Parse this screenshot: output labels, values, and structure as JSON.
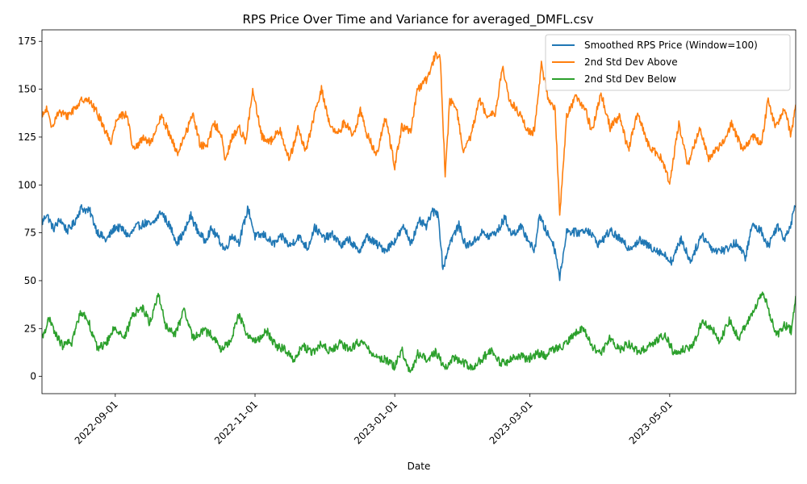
{
  "chart_data": {
    "type": "line",
    "title": "RPS Price Over Time and Variance for averaged_DMFL.csv",
    "xlabel": "Date",
    "ylabel": "",
    "x_range": [
      "2022-07-31",
      "2023-06-25"
    ],
    "ylim": [
      -9,
      181
    ],
    "x_ticks": [
      "2022-09-01",
      "2022-11-01",
      "2023-01-01",
      "2023-03-01",
      "2023-05-01"
    ],
    "y_ticks": [
      "0",
      "25",
      "50",
      "75",
      "100",
      "125",
      "150",
      "175"
    ],
    "grid": false,
    "legend_position": "top-right",
    "noise_amplitude": 2.2,
    "series": [
      {
        "name": "Smoothed RPS Price (Window=100)",
        "color": "#1f77b4",
        "points": [
          [
            "2022-07-31",
            80
          ],
          [
            "2022-08-02",
            85
          ],
          [
            "2022-08-05",
            77
          ],
          [
            "2022-08-08",
            82
          ],
          [
            "2022-08-11",
            76
          ],
          [
            "2022-08-14",
            80
          ],
          [
            "2022-08-17",
            88
          ],
          [
            "2022-08-21",
            86
          ],
          [
            "2022-08-24",
            76
          ],
          [
            "2022-08-28",
            71
          ],
          [
            "2022-09-01",
            78
          ],
          [
            "2022-09-04",
            77
          ],
          [
            "2022-09-07",
            73
          ],
          [
            "2022-09-10",
            78
          ],
          [
            "2022-09-14",
            80
          ],
          [
            "2022-09-17",
            79
          ],
          [
            "2022-09-21",
            86
          ],
          [
            "2022-09-25",
            78
          ],
          [
            "2022-09-28",
            70
          ],
          [
            "2022-10-01",
            75
          ],
          [
            "2022-10-04",
            84
          ],
          [
            "2022-10-07",
            76
          ],
          [
            "2022-10-10",
            71
          ],
          [
            "2022-10-13",
            77
          ],
          [
            "2022-10-16",
            72
          ],
          [
            "2022-10-19",
            66
          ],
          [
            "2022-10-22",
            74
          ],
          [
            "2022-10-25",
            70
          ],
          [
            "2022-10-29",
            88
          ],
          [
            "2022-11-01",
            73
          ],
          [
            "2022-11-05",
            74
          ],
          [
            "2022-11-09",
            69
          ],
          [
            "2022-11-13",
            73
          ],
          [
            "2022-11-16",
            68
          ],
          [
            "2022-11-20",
            73
          ],
          [
            "2022-11-24",
            67
          ],
          [
            "2022-11-27",
            78
          ],
          [
            "2022-12-01",
            72
          ],
          [
            "2022-12-05",
            74
          ],
          [
            "2022-12-09",
            68
          ],
          [
            "2022-12-12",
            72
          ],
          [
            "2022-12-16",
            65
          ],
          [
            "2022-12-20",
            73
          ],
          [
            "2022-12-24",
            69
          ],
          [
            "2022-12-28",
            66
          ],
          [
            "2023-01-01",
            71
          ],
          [
            "2023-01-05",
            78
          ],
          [
            "2023-01-08",
            70
          ],
          [
            "2023-01-12",
            81
          ],
          [
            "2023-01-15",
            78
          ],
          [
            "2023-01-17",
            86
          ],
          [
            "2023-01-20",
            85
          ],
          [
            "2023-01-22",
            56
          ],
          [
            "2023-01-25",
            70
          ],
          [
            "2023-01-29",
            79
          ],
          [
            "2023-02-01",
            68
          ],
          [
            "2023-02-05",
            71
          ],
          [
            "2023-02-08",
            75
          ],
          [
            "2023-02-11",
            73
          ],
          [
            "2023-02-15",
            76
          ],
          [
            "2023-02-18",
            83
          ],
          [
            "2023-02-21",
            74
          ],
          [
            "2023-02-25",
            78
          ],
          [
            "2023-02-28",
            72
          ],
          [
            "2023-03-03",
            65
          ],
          [
            "2023-03-05",
            84
          ],
          [
            "2023-03-08",
            76
          ],
          [
            "2023-03-11",
            70
          ],
          [
            "2023-03-13",
            60
          ],
          [
            "2023-03-14",
            51
          ],
          [
            "2023-03-17",
            76
          ],
          [
            "2023-03-22",
            75
          ],
          [
            "2023-03-26",
            77
          ],
          [
            "2023-03-31",
            69
          ],
          [
            "2023-04-05",
            76
          ],
          [
            "2023-04-09",
            72
          ],
          [
            "2023-04-13",
            67
          ],
          [
            "2023-04-18",
            71
          ],
          [
            "2023-04-22",
            68
          ],
          [
            "2023-04-27",
            65
          ],
          [
            "2023-05-02",
            60
          ],
          [
            "2023-05-06",
            72
          ],
          [
            "2023-05-10",
            60
          ],
          [
            "2023-05-15",
            74
          ],
          [
            "2023-05-20",
            66
          ],
          [
            "2023-05-25",
            66
          ],
          [
            "2023-05-30",
            70
          ],
          [
            "2023-06-03",
            62
          ],
          [
            "2023-06-06",
            79
          ],
          [
            "2023-06-10",
            76
          ],
          [
            "2023-06-13",
            68
          ],
          [
            "2023-06-17",
            79
          ],
          [
            "2023-06-20",
            72
          ],
          [
            "2023-06-23",
            80
          ],
          [
            "2023-06-25",
            91
          ]
        ]
      },
      {
        "name": "2nd Std Dev Above",
        "color": "#ff7f0e",
        "points": [
          [
            "2022-07-31",
            135
          ],
          [
            "2022-08-02",
            140
          ],
          [
            "2022-08-04",
            130
          ],
          [
            "2022-08-07",
            138
          ],
          [
            "2022-08-11",
            136
          ],
          [
            "2022-08-15",
            141
          ],
          [
            "2022-08-19",
            146
          ],
          [
            "2022-08-23",
            140
          ],
          [
            "2022-08-26",
            133
          ],
          [
            "2022-08-30",
            122
          ],
          [
            "2022-09-02",
            136
          ],
          [
            "2022-09-06",
            137
          ],
          [
            "2022-09-09",
            118
          ],
          [
            "2022-09-13",
            124
          ],
          [
            "2022-09-17",
            122
          ],
          [
            "2022-09-21",
            136
          ],
          [
            "2022-09-25",
            126
          ],
          [
            "2022-09-28",
            116
          ],
          [
            "2022-10-02",
            128
          ],
          [
            "2022-10-05",
            137
          ],
          [
            "2022-10-08",
            121
          ],
          [
            "2022-10-11",
            120
          ],
          [
            "2022-10-14",
            132
          ],
          [
            "2022-10-17",
            128
          ],
          [
            "2022-10-19",
            112
          ],
          [
            "2022-10-22",
            125
          ],
          [
            "2022-10-25",
            130
          ],
          [
            "2022-10-28",
            123
          ],
          [
            "2022-10-31",
            149
          ],
          [
            "2022-11-04",
            125
          ],
          [
            "2022-11-08",
            123
          ],
          [
            "2022-11-12",
            129
          ],
          [
            "2022-11-16",
            113
          ],
          [
            "2022-11-20",
            130
          ],
          [
            "2022-11-23",
            117
          ],
          [
            "2022-11-26",
            132
          ],
          [
            "2022-11-30",
            150
          ],
          [
            "2022-12-04",
            130
          ],
          [
            "2022-12-07",
            126
          ],
          [
            "2022-12-10",
            133
          ],
          [
            "2022-12-14",
            126
          ],
          [
            "2022-12-17",
            139
          ],
          [
            "2022-12-20",
            126
          ],
          [
            "2022-12-24",
            116
          ],
          [
            "2022-12-28",
            135
          ],
          [
            "2023-01-01",
            110
          ],
          [
            "2023-01-04",
            130
          ],
          [
            "2023-01-08",
            128
          ],
          [
            "2023-01-11",
            150
          ],
          [
            "2023-01-15",
            155
          ],
          [
            "2023-01-19",
            169
          ],
          [
            "2023-01-21",
            165
          ],
          [
            "2023-01-23",
            104
          ],
          [
            "2023-01-25",
            144
          ],
          [
            "2023-01-28",
            140
          ],
          [
            "2023-01-31",
            116
          ],
          [
            "2023-02-03",
            125
          ],
          [
            "2023-02-07",
            145
          ],
          [
            "2023-02-10",
            137
          ],
          [
            "2023-02-14",
            138
          ],
          [
            "2023-02-17",
            162
          ],
          [
            "2023-02-20",
            144
          ],
          [
            "2023-02-24",
            138
          ],
          [
            "2023-02-28",
            128
          ],
          [
            "2023-03-03",
            128
          ],
          [
            "2023-03-06",
            163
          ],
          [
            "2023-03-09",
            145
          ],
          [
            "2023-03-12",
            140
          ],
          [
            "2023-03-14",
            84
          ],
          [
            "2023-03-17",
            136
          ],
          [
            "2023-03-21",
            146
          ],
          [
            "2023-03-25",
            140
          ],
          [
            "2023-03-28",
            128
          ],
          [
            "2023-04-01",
            148
          ],
          [
            "2023-04-05",
            130
          ],
          [
            "2023-04-09",
            136
          ],
          [
            "2023-04-13",
            118
          ],
          [
            "2023-04-17",
            138
          ],
          [
            "2023-04-22",
            120
          ],
          [
            "2023-04-27",
            114
          ],
          [
            "2023-05-01",
            102
          ],
          [
            "2023-05-05",
            132
          ],
          [
            "2023-05-09",
            110
          ],
          [
            "2023-05-14",
            130
          ],
          [
            "2023-05-18",
            114
          ],
          [
            "2023-05-23",
            120
          ],
          [
            "2023-05-28",
            132
          ],
          [
            "2023-06-02",
            118
          ],
          [
            "2023-06-06",
            126
          ],
          [
            "2023-06-10",
            121
          ],
          [
            "2023-06-13",
            145
          ],
          [
            "2023-06-16",
            130
          ],
          [
            "2023-06-20",
            140
          ],
          [
            "2023-06-23",
            126
          ],
          [
            "2023-06-25",
            142
          ]
        ]
      },
      {
        "name": "2nd Std Dev Below",
        "color": "#2ca02c",
        "points": [
          [
            "2022-07-31",
            20
          ],
          [
            "2022-08-03",
            30
          ],
          [
            "2022-08-06",
            22
          ],
          [
            "2022-08-09",
            16
          ],
          [
            "2022-08-13",
            18
          ],
          [
            "2022-08-17",
            34
          ],
          [
            "2022-08-20",
            30
          ],
          [
            "2022-08-24",
            15
          ],
          [
            "2022-08-28",
            17
          ],
          [
            "2022-09-01",
            26
          ],
          [
            "2022-09-05",
            20
          ],
          [
            "2022-09-09",
            33
          ],
          [
            "2022-09-13",
            36
          ],
          [
            "2022-09-16",
            28
          ],
          [
            "2022-09-20",
            43
          ],
          [
            "2022-09-23",
            26
          ],
          [
            "2022-09-27",
            22
          ],
          [
            "2022-10-01",
            34
          ],
          [
            "2022-10-05",
            20
          ],
          [
            "2022-10-09",
            24
          ],
          [
            "2022-10-13",
            22
          ],
          [
            "2022-10-17",
            14
          ],
          [
            "2022-10-21",
            18
          ],
          [
            "2022-10-25",
            32
          ],
          [
            "2022-10-29",
            21
          ],
          [
            "2022-11-02",
            18
          ],
          [
            "2022-11-06",
            24
          ],
          [
            "2022-11-10",
            16
          ],
          [
            "2022-11-14",
            14
          ],
          [
            "2022-11-18",
            9
          ],
          [
            "2022-11-22",
            16
          ],
          [
            "2022-11-26",
            12
          ],
          [
            "2022-11-30",
            17
          ],
          [
            "2022-12-04",
            13
          ],
          [
            "2022-12-08",
            17
          ],
          [
            "2022-12-12",
            14
          ],
          [
            "2022-12-16",
            18
          ],
          [
            "2022-12-20",
            15
          ],
          [
            "2022-12-24",
            10
          ],
          [
            "2022-12-28",
            9
          ],
          [
            "2023-01-01",
            5
          ],
          [
            "2023-01-04",
            14
          ],
          [
            "2023-01-08",
            1
          ],
          [
            "2023-01-11",
            12
          ],
          [
            "2023-01-15",
            9
          ],
          [
            "2023-01-19",
            13
          ],
          [
            "2023-01-23",
            4
          ],
          [
            "2023-01-27",
            10
          ],
          [
            "2023-01-31",
            7
          ],
          [
            "2023-02-04",
            5
          ],
          [
            "2023-02-08",
            9
          ],
          [
            "2023-02-12",
            14
          ],
          [
            "2023-02-16",
            7
          ],
          [
            "2023-02-20",
            8
          ],
          [
            "2023-02-24",
            11
          ],
          [
            "2023-02-28",
            9
          ],
          [
            "2023-03-04",
            12
          ],
          [
            "2023-03-08",
            11
          ],
          [
            "2023-03-12",
            15
          ],
          [
            "2023-03-16",
            16
          ],
          [
            "2023-03-20",
            21
          ],
          [
            "2023-03-24",
            26
          ],
          [
            "2023-03-28",
            16
          ],
          [
            "2023-04-01",
            12
          ],
          [
            "2023-04-05",
            20
          ],
          [
            "2023-04-09",
            14
          ],
          [
            "2023-04-13",
            17
          ],
          [
            "2023-04-17",
            13
          ],
          [
            "2023-04-21",
            15
          ],
          [
            "2023-04-25",
            19
          ],
          [
            "2023-04-29",
            22
          ],
          [
            "2023-05-03",
            12
          ],
          [
            "2023-05-07",
            14
          ],
          [
            "2023-05-11",
            16
          ],
          [
            "2023-05-15",
            28
          ],
          [
            "2023-05-19",
            26
          ],
          [
            "2023-05-23",
            18
          ],
          [
            "2023-05-27",
            30
          ],
          [
            "2023-05-31",
            20
          ],
          [
            "2023-06-04",
            28
          ],
          [
            "2023-06-08",
            38
          ],
          [
            "2023-06-11",
            44
          ],
          [
            "2023-06-14",
            30
          ],
          [
            "2023-06-17",
            22
          ],
          [
            "2023-06-20",
            27
          ],
          [
            "2023-06-23",
            24
          ],
          [
            "2023-06-25",
            40
          ]
        ]
      }
    ]
  }
}
